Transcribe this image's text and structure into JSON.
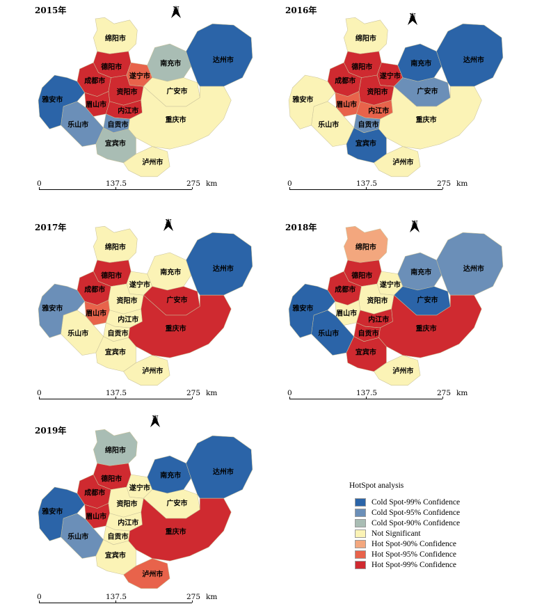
{
  "colors": {
    "cold99": "#2b64a8",
    "cold95": "#6b8fb8",
    "cold90": "#a9bdb4",
    "notsig": "#fbf3b6",
    "hot90": "#f3a77e",
    "hot95": "#e8634b",
    "hot99": "#cf2a30"
  },
  "scale": {
    "t0": "0",
    "t1": "137.5",
    "t2": "275",
    "unit": "km"
  },
  "north_label": "N",
  "cities": {
    "mianyang": "绵阳市",
    "deyang": "德阳市",
    "chengdu": "成都市",
    "suining": "遂宁市",
    "ziyang": "资阳市",
    "meishan": "眉山市",
    "neijiang": "内江市",
    "zigong": "自贡市",
    "leshan": "乐山市",
    "yaan": "雅安市",
    "yibin": "宜宾市",
    "luzhou": "泸州市",
    "nanchong": "南充市",
    "guangan": "广安市",
    "dazhou": "达州市",
    "chongqing": "重庆市"
  },
  "panels": [
    {
      "year": "2015年",
      "classes": {
        "mianyang": "notsig",
        "deyang": "hot99",
        "chengdu": "hot99",
        "suining": "hot95",
        "ziyang": "hot99",
        "meishan": "hot99",
        "neijiang": "hot99",
        "zigong": "cold95",
        "leshan": "cold95",
        "yaan": "cold99",
        "yibin": "cold90",
        "luzhou": "notsig",
        "nanchong": "cold90",
        "guangan": "notsig",
        "dazhou": "cold99",
        "chongqing": "notsig"
      }
    },
    {
      "year": "2016年",
      "classes": {
        "mianyang": "notsig",
        "deyang": "hot99",
        "chengdu": "hot99",
        "suining": "hot99",
        "ziyang": "hot99",
        "meishan": "hot95",
        "neijiang": "hot95",
        "zigong": "cold95",
        "leshan": "notsig",
        "yaan": "notsig",
        "yibin": "cold99",
        "luzhou": "notsig",
        "nanchong": "cold99",
        "guangan": "cold95",
        "dazhou": "cold99",
        "chongqing": "notsig"
      }
    },
    {
      "year": "2017年",
      "classes": {
        "mianyang": "notsig",
        "deyang": "hot99",
        "chengdu": "hot99",
        "suining": "notsig",
        "ziyang": "notsig",
        "meishan": "hot95",
        "neijiang": "notsig",
        "zigong": "notsig",
        "leshan": "notsig",
        "yaan": "cold95",
        "yibin": "notsig",
        "luzhou": "notsig",
        "nanchong": "notsig",
        "guangan": "hot99",
        "dazhou": "cold99",
        "chongqing": "hot99"
      }
    },
    {
      "year": "2018年",
      "classes": {
        "mianyang": "hot90",
        "deyang": "hot99",
        "chengdu": "hot99",
        "suining": "notsig",
        "ziyang": "notsig",
        "meishan": "notsig",
        "neijiang": "hot99",
        "zigong": "hot99",
        "leshan": "cold99",
        "yaan": "cold99",
        "yibin": "hot99",
        "luzhou": "notsig",
        "nanchong": "cold95",
        "guangan": "cold99",
        "dazhou": "cold95",
        "chongqing": "hot99"
      }
    },
    {
      "year": "2019年",
      "classes": {
        "mianyang": "cold90",
        "deyang": "hot99",
        "chengdu": "hot99",
        "suining": "notsig",
        "ziyang": "notsig",
        "meishan": "hot99",
        "neijiang": "notsig",
        "zigong": "notsig",
        "leshan": "cold95",
        "yaan": "cold99",
        "yibin": "notsig",
        "luzhou": "hot95",
        "nanchong": "cold99",
        "guangan": "notsig",
        "dazhou": "cold99",
        "chongqing": "hot99"
      }
    }
  ],
  "legend": {
    "title": "HotSpot analysis",
    "items": [
      {
        "label": "Cold Spot-99% Confidence",
        "color": "#2b64a8"
      },
      {
        "label": "Cold Spot-95% Confidence",
        "color": "#6b8fb8"
      },
      {
        "label": "Cold Spot-90% Confidence",
        "color": "#a9bdb4"
      },
      {
        "label": "Not Significant",
        "color": "#fbf3b6"
      },
      {
        "label": "Hot Spot-90% Confidence",
        "color": "#f3a77e"
      },
      {
        "label": "Hot Spot-95% Confidence",
        "color": "#e8634b"
      },
      {
        "label": "Hot Spot-99% Confidence",
        "color": "#cf2a30"
      }
    ]
  }
}
